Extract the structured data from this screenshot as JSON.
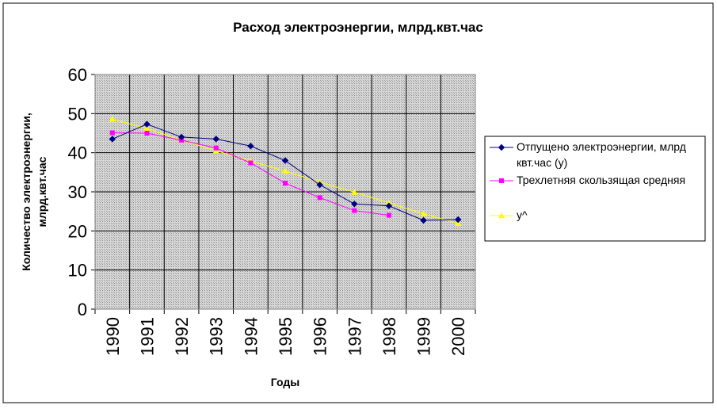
{
  "chart_data": {
    "type": "line",
    "title": "Расход электроэнергии, млрд.квт.час",
    "xlabel": "Годы",
    "ylabel_lines": [
      "Количество электроэнергии,",
      "млрд.квт.час"
    ],
    "categories": [
      "1990",
      "1991",
      "1992",
      "1993",
      "1994",
      "1995",
      "1996",
      "1997",
      "1998",
      "1999",
      "2000"
    ],
    "ylim": [
      0,
      60
    ],
    "yticks": [
      "0",
      "10",
      "20",
      "30",
      "40",
      "50",
      "60"
    ],
    "grid": true,
    "legend_position": "right",
    "series": [
      {
        "name": "Отпущено электроэнергии, млрд квт.час (у)",
        "legend_lines": [
          "Отпущено электроэнергии, млрд",
          "квт.час (у)"
        ],
        "color": "#000080",
        "marker": "diamond",
        "values": [
          43.5,
          47.3,
          44.0,
          43.5,
          41.7,
          38.0,
          31.8,
          26.9,
          26.4,
          22.7,
          22.9
        ]
      },
      {
        "name": "Трехлетняя скользящая средняя",
        "legend_lines": [
          "Трехлетняя скользящая средняя"
        ],
        "color": "#ff00ff",
        "marker": "square",
        "values": [
          45.1,
          45.0,
          43.2,
          41.2,
          37.4,
          32.2,
          28.5,
          25.2,
          24.0,
          null,
          null
        ]
      },
      {
        "name": "у^",
        "legend_lines": [
          "у^"
        ],
        "color": "#ffff00",
        "marker": "triangle",
        "values": [
          48.6,
          46.2,
          43.2,
          40.5,
          37.9,
          35.3,
          32.5,
          29.9,
          27.2,
          24.4,
          21.9
        ]
      }
    ]
  }
}
